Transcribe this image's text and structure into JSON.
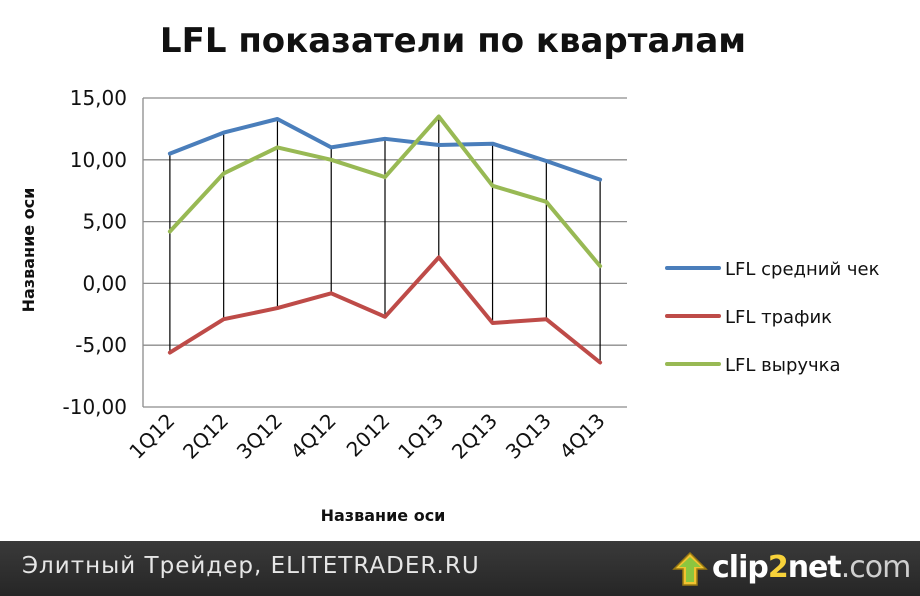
{
  "chart_data": {
    "type": "line",
    "title": "LFL показатели по кварталам",
    "xlabel": "Название оси",
    "ylabel": "Название оси",
    "categories": [
      "1Q12",
      "2Q12",
      "3Q12",
      "4Q12",
      "2012",
      "1Q13",
      "2Q13",
      "3Q13",
      "4Q13"
    ],
    "ylim": [
      -10,
      15
    ],
    "yticks": [
      "15,00",
      "10,00",
      "5,00",
      "0,00",
      "-5,00",
      "-10,00"
    ],
    "grid": true,
    "drop_lines": true,
    "legend_position": "right",
    "series": [
      {
        "name": "LFL средний чек",
        "color": "#4a7ebb",
        "values": [
          10.5,
          12.2,
          13.3,
          11.0,
          11.7,
          11.2,
          11.3,
          9.9,
          8.4
        ]
      },
      {
        "name": "LFL трафик",
        "color": "#be4b48",
        "values": [
          -5.6,
          -2.9,
          -2.0,
          -0.8,
          -2.7,
          2.1,
          -3.2,
          -2.9,
          -6.4
        ]
      },
      {
        "name": "LFL выручка",
        "color": "#98b954",
        "values": [
          4.2,
          8.9,
          11.0,
          10.0,
          8.6,
          13.5,
          7.9,
          6.6,
          1.4
        ]
      }
    ]
  },
  "footer": {
    "site_text": "Элитный Трейдер, ELITETRADER.RU",
    "logo_left": "clip",
    "logo_two": "2",
    "logo_mid": "net",
    "logo_right": ".com"
  }
}
